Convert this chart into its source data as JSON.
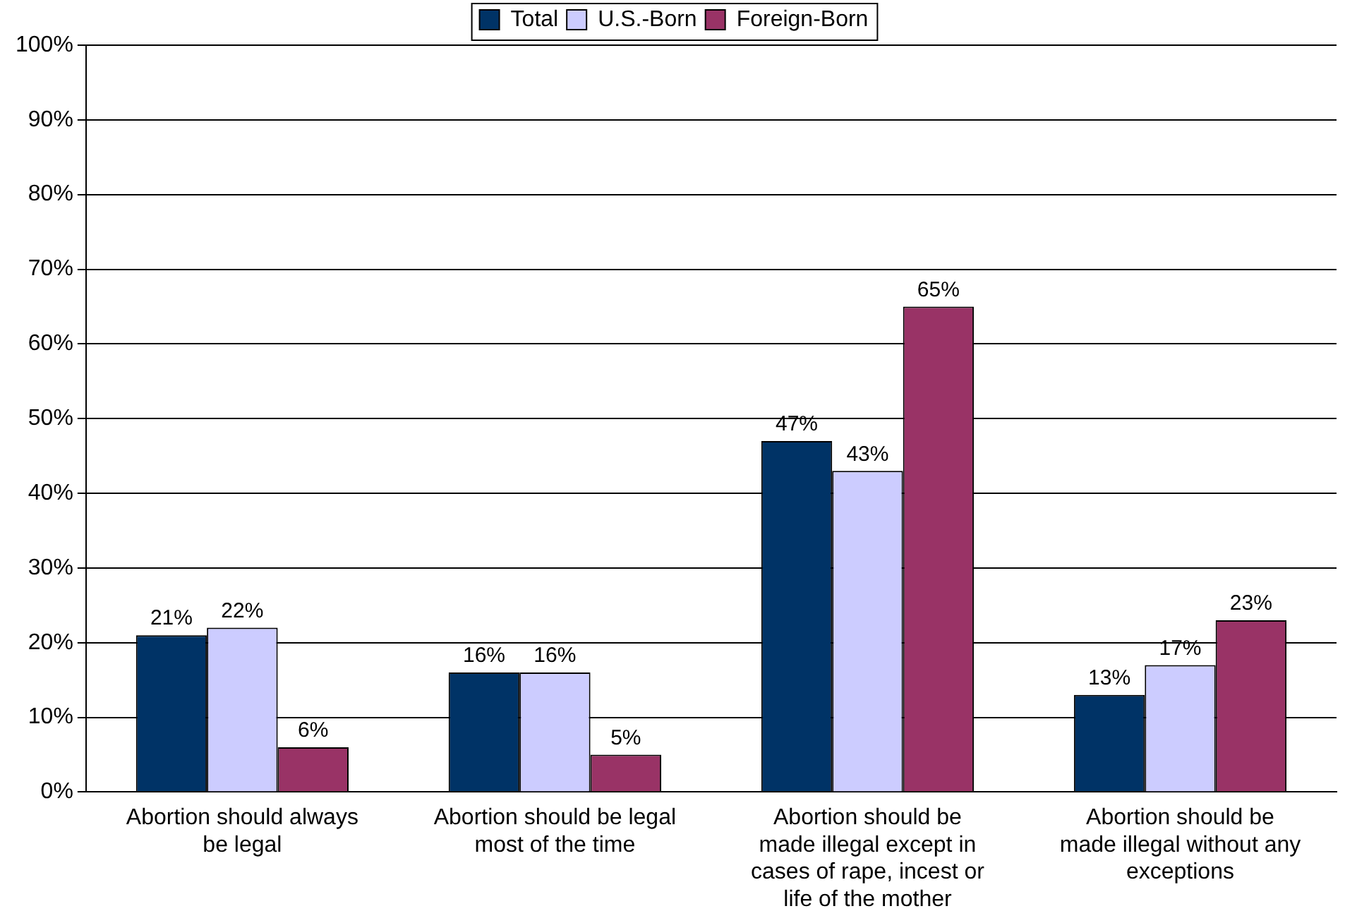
{
  "chart_data": {
    "type": "bar",
    "categories": [
      "Abortion should always be legal",
      "Abortion should be legal most of the time",
      "Abortion should be made illegal except in cases of rape, incest or life of the mother",
      "Abortion should be made illegal without any exceptions"
    ],
    "series": [
      {
        "name": "Total",
        "color": "#003366",
        "values": [
          21,
          16,
          47,
          13
        ],
        "value_labels": [
          "21%",
          "16%",
          "47%",
          "13%"
        ]
      },
      {
        "name": "U.S.-Born",
        "color": "#ccccff",
        "values": [
          22,
          16,
          43,
          17
        ],
        "value_labels": [
          "22%",
          "16%",
          "43%",
          "17%"
        ]
      },
      {
        "name": "Foreign-Born",
        "color": "#993366",
        "values": [
          6,
          5,
          65,
          23
        ],
        "value_labels": [
          "6%",
          "5%",
          "65%",
          "23%"
        ]
      }
    ],
    "ylim": [
      0,
      100
    ],
    "yticks": [
      {
        "value": 0,
        "label": "0%"
      },
      {
        "value": 10,
        "label": "10%"
      },
      {
        "value": 20,
        "label": "20%"
      },
      {
        "value": 30,
        "label": "30%"
      },
      {
        "value": 40,
        "label": "40%"
      },
      {
        "value": 50,
        "label": "50%"
      },
      {
        "value": 60,
        "label": "60%"
      },
      {
        "value": 70,
        "label": "70%"
      },
      {
        "value": 80,
        "label": "80%"
      },
      {
        "value": 90,
        "label": "90%"
      },
      {
        "value": 100,
        "label": "100%"
      }
    ],
    "grid": "y",
    "legend": "top"
  }
}
